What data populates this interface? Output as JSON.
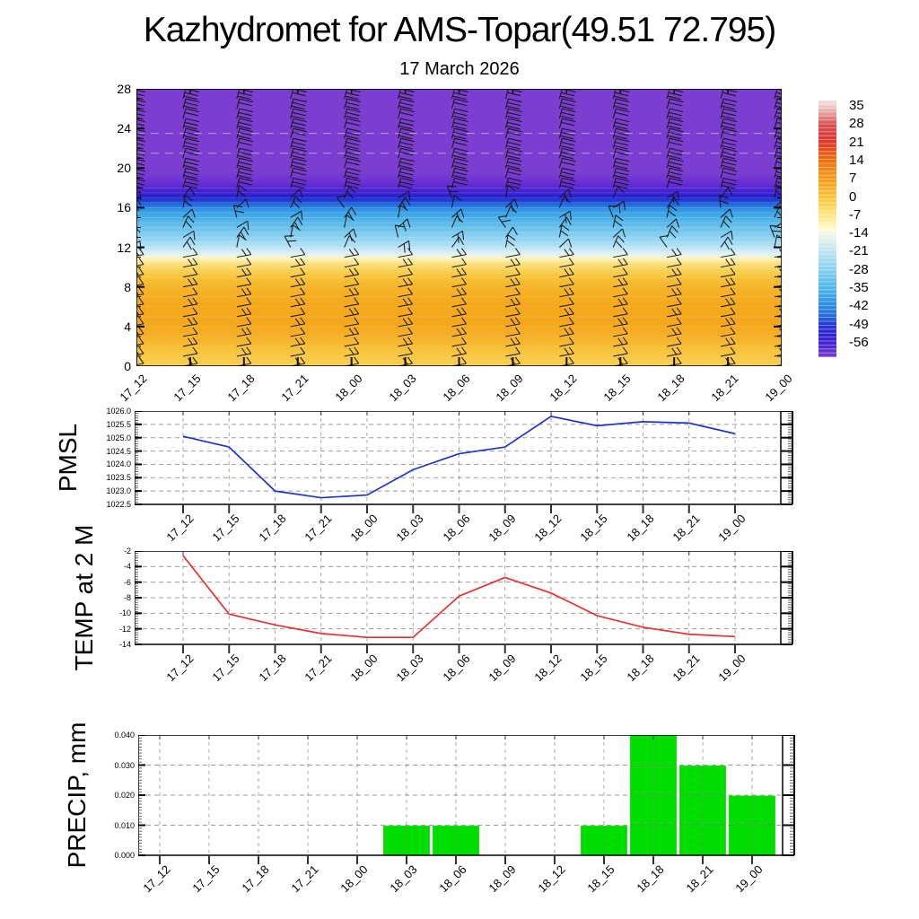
{
  "title": "Kazhydromet for AMS-Topar(49.51 72.795)",
  "subtitle": "17 March 2026",
  "times": [
    "17_12",
    "17_15",
    "17_18",
    "17_21",
    "18_00",
    "18_03",
    "18_06",
    "18_09",
    "18_12",
    "18_15",
    "18_18",
    "18_21",
    "19_00"
  ],
  "chart_data": [
    {
      "type": "heatmap",
      "name": "temperature-height-cross-section",
      "x": [
        "17_12",
        "17_15",
        "17_18",
        "17_21",
        "18_00",
        "18_03",
        "18_06",
        "18_09",
        "18_12",
        "18_15",
        "18_18",
        "18_21",
        "19_00"
      ],
      "ylim": [
        0,
        28
      ],
      "yticks": [
        0,
        4,
        8,
        12,
        16,
        20,
        24,
        28
      ],
      "colorbar_labels": [
        35,
        28,
        21,
        14,
        7,
        0,
        -7,
        -14,
        -21,
        -28,
        -35,
        -42,
        -49,
        -56
      ],
      "colorbar_stops": [
        [
          "0%",
          "#f5dede"
        ],
        [
          "2.1%",
          "#f0cccc"
        ],
        [
          "9.2%",
          "#db5454"
        ],
        [
          "13%",
          "#d84040"
        ],
        [
          "16.3%",
          "#e03a28"
        ],
        [
          "23.4%",
          "#ee7210"
        ],
        [
          "30.5%",
          "#f59c1c"
        ],
        [
          "37.6%",
          "#fac33a"
        ],
        [
          "44.7%",
          "#fde683"
        ],
        [
          "50.5%",
          "#fefbda"
        ],
        [
          "53%",
          "#eaf3ee"
        ],
        [
          "58.9%",
          "#bfe3f4"
        ],
        [
          "66%",
          "#84cff0"
        ],
        [
          "73.1%",
          "#4cb7e8"
        ],
        [
          "80.2%",
          "#2b8ae0"
        ],
        [
          "85%",
          "#2560d8"
        ],
        [
          "87.3%",
          "#2838d4"
        ],
        [
          "91%",
          "#2c23d0"
        ],
        [
          "94.4%",
          "#4323d0"
        ],
        [
          "100%",
          "#7b3ed0"
        ]
      ],
      "profile_stops": [
        [
          "0%",
          "#7b3ed0"
        ],
        [
          "30%",
          "#7b3ed0"
        ],
        [
          "33.5%",
          "#6b32d2"
        ],
        [
          "35.7%",
          "#5527d2"
        ],
        [
          "37.5%",
          "#3b20d0"
        ],
        [
          "39%",
          "#2622cc"
        ],
        [
          "40.4%",
          "#2041d6"
        ],
        [
          "42%",
          "#2470de"
        ],
        [
          "43.6%",
          "#2f97e3"
        ],
        [
          "46.4%",
          "#49aee7"
        ],
        [
          "50%",
          "#68c1ec"
        ],
        [
          "54%",
          "#92d4f1"
        ],
        [
          "57%",
          "#b7e2f5"
        ],
        [
          "59%",
          "#d9eef8"
        ],
        [
          "60.4%",
          "#f2f5dc"
        ],
        [
          "61.5%",
          "#fdf2b4"
        ],
        [
          "63%",
          "#fce084"
        ],
        [
          "65%",
          "#fad45c"
        ],
        [
          "68%",
          "#f8c43a"
        ],
        [
          "71.4%",
          "#f6b52a"
        ],
        [
          "77%",
          "#f5aa1e"
        ],
        [
          "84%",
          "#f4a71b"
        ],
        [
          "89.3%",
          "#f6b028"
        ],
        [
          "94.6%",
          "#f9c43d"
        ],
        [
          "100%",
          "#fbcf54"
        ]
      ],
      "contour_levels_low": [
        1,
        2,
        3,
        4,
        5,
        6,
        7,
        8,
        9,
        10
      ],
      "contour_levels_band": [
        11,
        11.5,
        12,
        12.5,
        13,
        13.5,
        14,
        14.5,
        15,
        15.5,
        16,
        16.5,
        17,
        17.5,
        18
      ],
      "contour_levels_upper": [
        21.5,
        23.5
      ],
      "barb_zones": {
        "upper": {
          "h_min": 18,
          "staff": [
            3,
            -11
          ],
          "feather": [
            15,
            3.5
          ],
          "attach": [
            1,
            0.62,
            0.26
          ]
        },
        "mid": {
          "h_min": 12,
          "angle_base": 35,
          "angle_jitter": 12,
          "len": 14,
          "feather_len": 10
        },
        "lower": {
          "h_min": 0,
          "staff": [
            16,
            -3
          ],
          "feather": [
            -5,
            -7
          ],
          "attach": [
            1,
            0.66
          ]
        }
      }
    },
    {
      "type": "line",
      "name": "PMSL",
      "x": [
        "17_12",
        "17_15",
        "17_18",
        "17_21",
        "18_00",
        "18_03",
        "18_06",
        "18_09",
        "18_12",
        "18_15",
        "18_18",
        "18_21",
        "19_00"
      ],
      "values": [
        1025.05,
        1024.65,
        1023.0,
        1022.75,
        1022.85,
        1023.8,
        1024.4,
        1024.65,
        1025.8,
        1025.45,
        1025.6,
        1025.55,
        1025.15
      ],
      "ylim": [
        1022.5,
        1026.0
      ],
      "yticks": [
        "1026.0",
        "1025.5",
        "1025.0",
        "1024.5",
        "1024.0",
        "1023.5",
        "1023.0",
        "1022.5"
      ],
      "color": "#2233cc"
    },
    {
      "type": "line",
      "name": "TEMP at 2 M",
      "x": [
        "17_12",
        "17_15",
        "17_18",
        "17_21",
        "18_00",
        "18_03",
        "18_06",
        "18_09",
        "18_12",
        "18_15",
        "18_18",
        "18_21",
        "19_00"
      ],
      "values": [
        -2.6,
        -10.1,
        -11.5,
        -12.6,
        -13.1,
        -13.1,
        -7.8,
        -5.4,
        -7.4,
        -10.3,
        -11.8,
        -12.7,
        -13.0
      ],
      "ylim": [
        -14,
        -2
      ],
      "yticks": [
        "-2",
        "-4",
        "-6",
        "-8",
        "-10",
        "-12",
        "-14"
      ],
      "color": "#e83030"
    },
    {
      "type": "bar",
      "name": "PRECIP, mm",
      "x": [
        "17_12",
        "17_15",
        "17_18",
        "17_21",
        "18_00",
        "18_03",
        "18_06",
        "18_09",
        "18_12",
        "18_15",
        "18_18",
        "18_21",
        "19_00"
      ],
      "values": [
        0,
        0,
        0,
        0,
        0,
        0.01,
        0.01,
        0,
        0,
        0.01,
        0.04,
        0.03,
        0.02
      ],
      "ylim": [
        0,
        0.04
      ],
      "yticks": [
        "0.040",
        "0.030",
        "0.020",
        "0.010",
        "0.000"
      ],
      "color": "#00dd00"
    }
  ]
}
